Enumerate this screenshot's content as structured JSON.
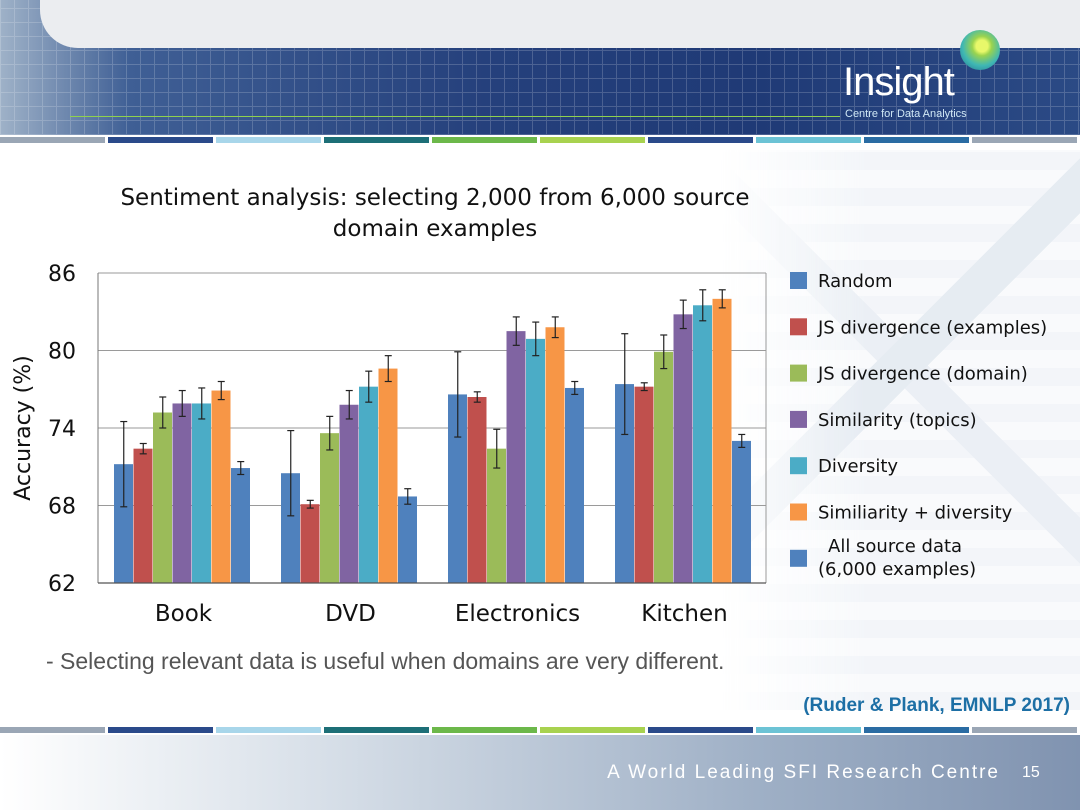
{
  "header": {
    "logo_text": "Insight",
    "logo_subtitle": "Centre for Data Analytics"
  },
  "colors": {
    "stripes": [
      "#9aa6b5",
      "#2a4a8a",
      "#a8d6ea",
      "#1d6f77",
      "#6cb84a",
      "#a8d24f",
      "#2a4a8a",
      "#6cc3d5",
      "#2a6ca3",
      "#9aa6b5"
    ]
  },
  "chart_data": {
    "type": "bar",
    "title_line1": "Sentiment analysis: selecting 2,000 from 6,000 source",
    "title_line2": "domain examples",
    "xlabel": "",
    "ylabel": "Accuracy (%)",
    "ylim": [
      62,
      86
    ],
    "yticks": [
      "86",
      "80",
      "74",
      "68",
      "62"
    ],
    "categories": [
      "Book",
      "DVD",
      "Electronics",
      "Kitchen"
    ],
    "grid": true,
    "legend_position": "right",
    "series": [
      {
        "name": "Random",
        "color": "#4f81bd",
        "values": [
          71.2,
          70.5,
          76.6,
          77.4
        ],
        "errors": [
          3.3,
          3.3,
          3.3,
          3.9
        ]
      },
      {
        "name": "JS divergence (examples)",
        "color": "#c0504d",
        "values": [
          72.4,
          68.1,
          76.4,
          77.2
        ],
        "errors": [
          0.4,
          0.3,
          0.4,
          0.3
        ]
      },
      {
        "name": "JS divergence (domain)",
        "color": "#9bbb59",
        "values": [
          75.2,
          73.6,
          72.4,
          79.9
        ],
        "errors": [
          1.2,
          1.3,
          1.5,
          1.3
        ]
      },
      {
        "name": "Similarity (topics)",
        "color": "#8064a2",
        "values": [
          75.9,
          75.8,
          81.5,
          82.8
        ],
        "errors": [
          1.0,
          1.1,
          1.1,
          1.1
        ]
      },
      {
        "name": "Diversity",
        "color": "#4bacc6",
        "values": [
          75.9,
          77.2,
          80.9,
          83.5
        ],
        "errors": [
          1.2,
          1.2,
          1.3,
          1.2
        ]
      },
      {
        "name": "Similiarity + diversity",
        "color": "#f79646",
        "values": [
          76.9,
          78.6,
          81.8,
          84.0
        ],
        "errors": [
          0.7,
          1.0,
          0.8,
          0.7
        ]
      },
      {
        "name": "All source data",
        "name_line2": "(6,000 examples)",
        "color": "#4f81bd",
        "values": [
          70.9,
          68.7,
          77.1,
          73.0
        ],
        "errors": [
          0.5,
          0.6,
          0.5,
          0.5
        ]
      }
    ]
  },
  "bullet": "-   Selecting relevant data is useful when domains are very different.",
  "citation": "(Ruder & Plank, EMNLP 2017)",
  "footer": {
    "text": "A World Leading SFI Research Centre",
    "page": "15"
  }
}
